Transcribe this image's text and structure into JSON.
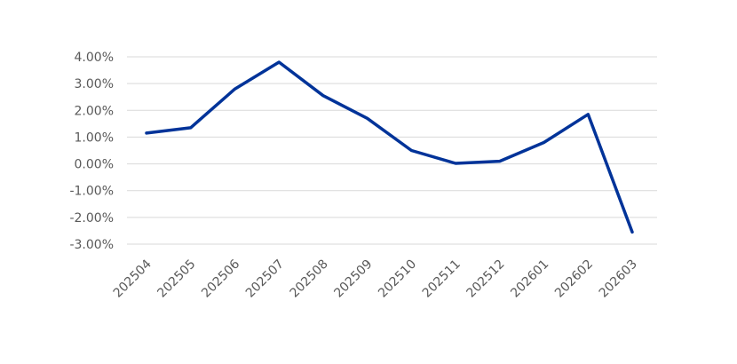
{
  "chart_data": {
    "type": "line",
    "title": "",
    "xlabel": "",
    "ylabel": "",
    "categories": [
      "202504",
      "202505",
      "202506",
      "202507",
      "202508",
      "202509",
      "202510",
      "202511",
      "202512",
      "202601",
      "202602",
      "202603"
    ],
    "series": [
      {
        "values": [
          1.15,
          1.35,
          2.8,
          3.8,
          2.55,
          1.7,
          0.5,
          0.02,
          0.1,
          0.8,
          1.85,
          -2.55
        ]
      }
    ],
    "ylim": [
      -3,
      4
    ],
    "yticks": [
      4,
      3,
      2,
      1,
      0,
      -1,
      -2,
      -3
    ],
    "ytick_labels": [
      "4.00%",
      "3.00%",
      "2.00%",
      "1.00%",
      "0.00%",
      "-1.00%",
      "-2.00%",
      "-3.00%"
    ],
    "grid": true,
    "legend": "none",
    "colors": {
      "line": "#003399",
      "grid": "#d9d9d9",
      "tick_text": "#595959"
    }
  }
}
